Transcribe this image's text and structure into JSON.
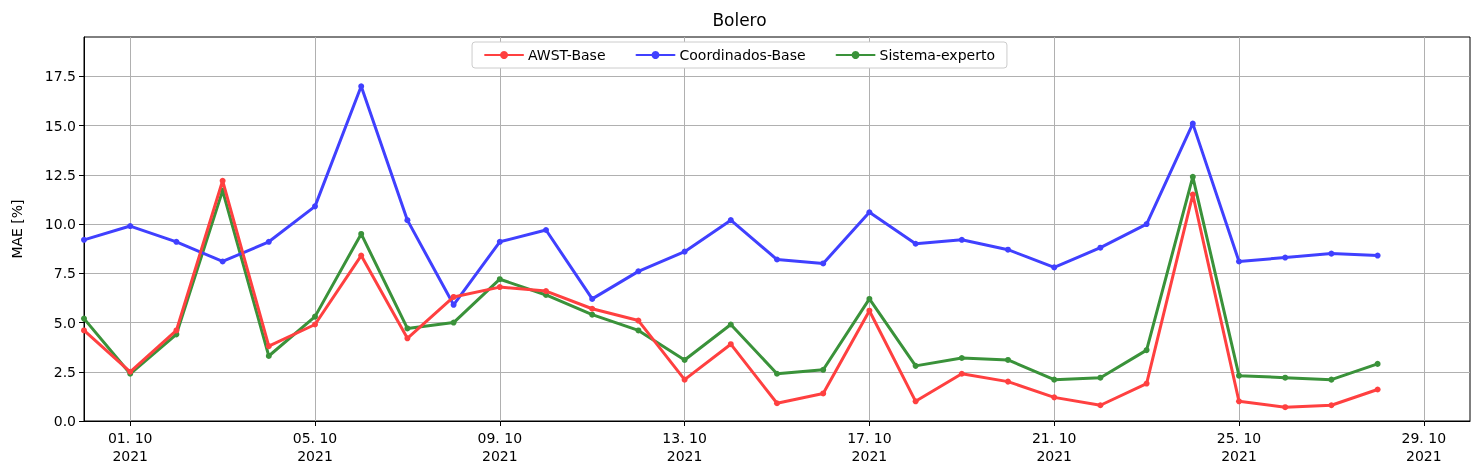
{
  "chart_data": {
    "type": "line",
    "title": "Bolero",
    "ylabel": "MAE [%]",
    "x": [
      "2021-09-30",
      "2021-10-01",
      "2021-10-02",
      "2021-10-03",
      "2021-10-04",
      "2021-10-05",
      "2021-10-06",
      "2021-10-07",
      "2021-10-08",
      "2021-10-09",
      "2021-10-10",
      "2021-10-11",
      "2021-10-12",
      "2021-10-13",
      "2021-10-14",
      "2021-10-15",
      "2021-10-16",
      "2021-10-17",
      "2021-10-18",
      "2021-10-19",
      "2021-10-20",
      "2021-10-21",
      "2021-10-22",
      "2021-10-23",
      "2021-10-24",
      "2021-10-25",
      "2021-10-26",
      "2021-10-27",
      "2021-10-28"
    ],
    "series": [
      {
        "name": "AWST-Base",
        "color": "#ff4040",
        "values": [
          4.6,
          2.5,
          4.6,
          12.2,
          3.8,
          4.9,
          8.4,
          4.2,
          6.3,
          6.8,
          6.6,
          5.7,
          5.1,
          2.1,
          3.9,
          0.9,
          1.4,
          5.6,
          1.0,
          2.4,
          2.0,
          1.2,
          0.8,
          1.9,
          11.5,
          1.0,
          0.7,
          0.8,
          1.6
        ]
      },
      {
        "name": "Coordinados-Base",
        "color": "#4040ff",
        "values": [
          9.2,
          9.9,
          9.1,
          8.1,
          9.1,
          10.9,
          17.0,
          10.2,
          5.9,
          9.1,
          9.7,
          6.2,
          7.6,
          8.6,
          10.2,
          8.2,
          8.0,
          10.6,
          9.0,
          9.2,
          8.7,
          7.8,
          8.8,
          10.0,
          15.1,
          8.1,
          8.3,
          8.5,
          8.4
        ]
      },
      {
        "name": "Sistema-experto",
        "color": "#3a923a",
        "values": [
          5.2,
          2.4,
          4.4,
          11.7,
          3.3,
          5.3,
          9.5,
          4.7,
          5.0,
          7.2,
          6.4,
          5.4,
          4.6,
          3.1,
          4.9,
          2.4,
          2.6,
          6.2,
          2.8,
          3.2,
          3.1,
          2.1,
          2.2,
          3.6,
          12.4,
          2.3,
          2.2,
          2.1,
          2.9
        ]
      }
    ],
    "xlim": [
      "2021-09-30",
      "2021-10-30"
    ],
    "xticks": [
      {
        "value": "2021-10-01",
        "label": "01. 10\n2021"
      },
      {
        "value": "2021-10-05",
        "label": "05. 10\n2021"
      },
      {
        "value": "2021-10-09",
        "label": "09. 10\n2021"
      },
      {
        "value": "2021-10-13",
        "label": "13. 10\n2021"
      },
      {
        "value": "2021-10-17",
        "label": "17. 10\n2021"
      },
      {
        "value": "2021-10-21",
        "label": "21. 10\n2021"
      },
      {
        "value": "2021-10-25",
        "label": "25. 10\n2021"
      },
      {
        "value": "2021-10-29",
        "label": "29. 10\n2021"
      }
    ],
    "ylim": [
      0,
      19.5
    ],
    "yticks": [
      {
        "value": 0,
        "label": "0.0"
      },
      {
        "value": 2.5,
        "label": "2.5"
      },
      {
        "value": 5,
        "label": "5.0"
      },
      {
        "value": 7.5,
        "label": "7.5"
      },
      {
        "value": 10,
        "label": "10.0"
      },
      {
        "value": 12.5,
        "label": "12.5"
      },
      {
        "value": 15,
        "label": "15.0"
      },
      {
        "value": 17.5,
        "label": "17.5"
      }
    ],
    "grid": true,
    "legend": "top",
    "marker": "circle",
    "line_style": "solid"
  }
}
